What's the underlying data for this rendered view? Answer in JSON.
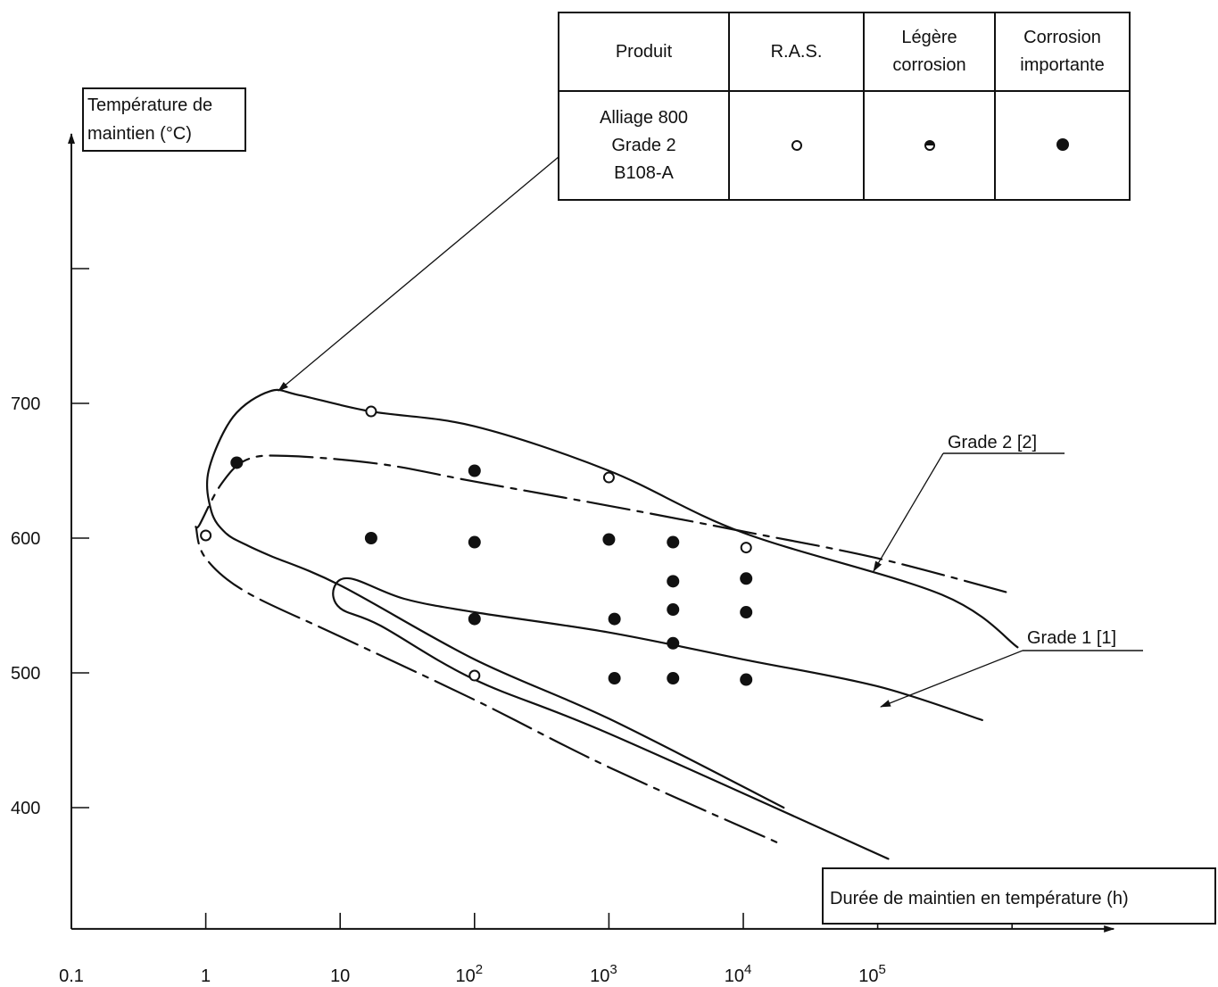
{
  "chart_data": {
    "type": "scatter",
    "title": "",
    "ylabel": [
      "Température de",
      "maintien (°C)"
    ],
    "xlabel": "Durée de maintien en température (h)",
    "x_scale": "log",
    "xlim": [
      0.1,
      1000000
    ],
    "ylim": [
      310,
      900
    ],
    "x_ticks": [
      {
        "v": 0.1,
        "t": "0.1"
      },
      {
        "v": 1,
        "t": "1"
      },
      {
        "v": 10,
        "t": "10"
      },
      {
        "v": 100,
        "t": "10",
        "sup": "2"
      },
      {
        "v": 1000,
        "t": "10",
        "sup": "3"
      },
      {
        "v": 10000,
        "t": "10",
        "sup": "4"
      },
      {
        "v": 100000,
        "t": "10",
        "sup": "5"
      },
      {
        "v": 1000000,
        "t": "",
        "sup": ""
      }
    ],
    "y_ticks": [
      {
        "v": 400,
        "t": "400"
      },
      {
        "v": 500,
        "t": "500"
      },
      {
        "v": 600,
        "t": "600"
      },
      {
        "v": 700,
        "t": "700"
      },
      {
        "v": 800,
        "t": ""
      }
    ],
    "legend": {
      "headers": [
        "Produit",
        "R.A.S.",
        "Légère corrosion",
        "Corrosion importante"
      ],
      "product": [
        "Alliage 800",
        "Grade 2",
        "B108-A"
      ],
      "markers": [
        "open",
        "half",
        "full"
      ]
    },
    "points": [
      {
        "x": 1,
        "y": 602,
        "status": "R.A.S."
      },
      {
        "x": 1.7,
        "y": 656,
        "status": "Corrosion importante"
      },
      {
        "x": 17,
        "y": 694,
        "status": "R.A.S."
      },
      {
        "x": 17,
        "y": 600,
        "status": "Corrosion importante"
      },
      {
        "x": 100,
        "y": 650,
        "status": "Corrosion importante"
      },
      {
        "x": 100,
        "y": 597,
        "status": "Corrosion importante"
      },
      {
        "x": 100,
        "y": 540,
        "status": "Corrosion importante"
      },
      {
        "x": 100,
        "y": 498,
        "status": "R.A.S."
      },
      {
        "x": 1000,
        "y": 645,
        "status": "R.A.S."
      },
      {
        "x": 1000,
        "y": 599,
        "status": "Corrosion importante"
      },
      {
        "x": 1100,
        "y": 540,
        "status": "Corrosion importante"
      },
      {
        "x": 1100,
        "y": 496,
        "status": "Corrosion importante"
      },
      {
        "x": 3000,
        "y": 597,
        "status": "Corrosion importante"
      },
      {
        "x": 3000,
        "y": 568,
        "status": "Corrosion importante"
      },
      {
        "x": 3000,
        "y": 547,
        "status": "Corrosion importante"
      },
      {
        "x": 3000,
        "y": 522,
        "status": "Corrosion importante"
      },
      {
        "x": 3000,
        "y": 496,
        "status": "Corrosion importante"
      },
      {
        "x": 10500,
        "y": 593,
        "status": "R.A.S."
      },
      {
        "x": 10500,
        "y": 570,
        "status": "Corrosion importante"
      },
      {
        "x": 10500,
        "y": 545,
        "status": "Corrosion importante"
      },
      {
        "x": 10500,
        "y": 495,
        "status": "Corrosion importante"
      }
    ],
    "curves": [
      {
        "id": "alliage-800-grade-2-b108a",
        "style": "solid",
        "points": [
          [
            1100000,
            519
          ],
          [
            300000,
            558
          ],
          [
            10000,
            604
          ],
          [
            1000,
            650
          ],
          [
            100,
            683
          ],
          [
            17,
            694
          ],
          [
            5,
            706
          ],
          [
            3,
            709
          ],
          [
            1.6,
            690
          ],
          [
            1.05,
            650
          ],
          [
            1.1,
            620
          ],
          [
            1.4,
            604
          ],
          [
            2,
            595
          ],
          [
            3,
            587
          ],
          [
            10,
            565
          ],
          [
            100,
            510
          ],
          [
            1000,
            466
          ],
          [
            20000,
            400
          ]
        ]
      },
      {
        "id": "grade-1",
        "style": "solid",
        "points": [
          [
            600000,
            465
          ],
          [
            100000,
            490
          ],
          [
            10000,
            510
          ],
          [
            1000,
            530
          ],
          [
            100,
            545
          ],
          [
            30,
            555
          ],
          [
            12,
            570
          ],
          [
            9,
            563
          ],
          [
            10,
            548
          ],
          [
            20,
            535
          ],
          [
            100,
            495
          ],
          [
            1000,
            455
          ],
          [
            120000,
            362
          ]
        ]
      },
      {
        "id": "grade-2",
        "style": "dashdot",
        "points": [
          [
            900000,
            560
          ],
          [
            100000,
            585
          ],
          [
            10000,
            605
          ],
          [
            1000,
            624
          ],
          [
            100,
            642
          ],
          [
            20,
            655
          ],
          [
            4,
            661
          ],
          [
            2,
            658
          ],
          [
            1.3,
            640
          ],
          [
            0.9,
            610
          ],
          [
            0.85,
            607
          ],
          [
            1,
            585
          ],
          [
            2,
            560
          ],
          [
            10,
            527
          ],
          [
            100,
            480
          ],
          [
            1000,
            430
          ],
          [
            20000,
            372
          ]
        ]
      }
    ],
    "annotations": [
      {
        "label": "Grade 2 [2]"
      },
      {
        "label": "Grade 1 [1]"
      }
    ]
  }
}
